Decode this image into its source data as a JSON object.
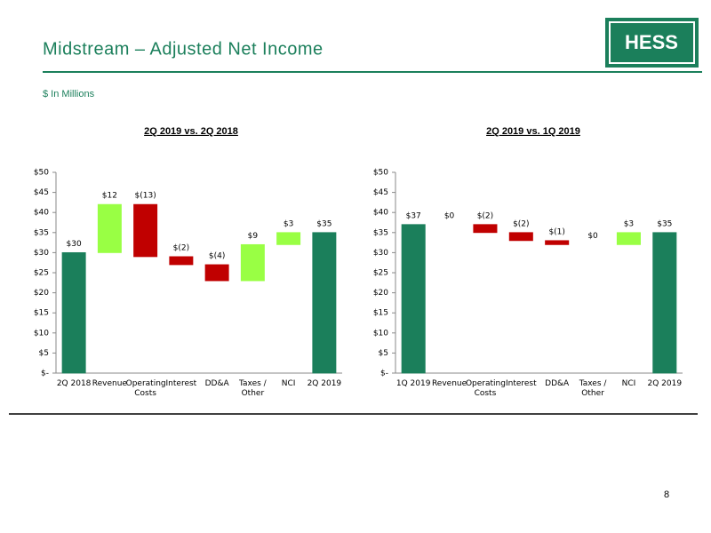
{
  "header": {
    "title": "Midstream – Adjusted Net Income",
    "subtitle": "$ In Millions",
    "logo": "HESS"
  },
  "page_number": "8",
  "chart_data": [
    {
      "type": "waterfall",
      "title": "2Q 2019 vs. 2Q 2018",
      "categories": [
        "2Q 2018",
        "Revenue",
        "Operating Costs",
        "Interest",
        "DD&A",
        "Taxes / Other",
        "NCI",
        "2Q 2019"
      ],
      "values": [
        30,
        12,
        -13,
        -2,
        -4,
        9,
        3,
        35
      ],
      "value_labels": [
        "$30",
        "$12",
        "$(13)",
        "$(2)",
        "$(4)",
        "$9",
        "$3",
        "$35"
      ],
      "ylim": [
        0,
        50
      ],
      "yticks": [
        {
          "value": 0,
          "label": "$-"
        },
        {
          "value": 5,
          "label": "$5"
        },
        {
          "value": 10,
          "label": "$10"
        },
        {
          "value": 15,
          "label": "$15"
        },
        {
          "value": 20,
          "label": "$20"
        },
        {
          "value": 25,
          "label": "$25"
        },
        {
          "value": 30,
          "label": "$30"
        },
        {
          "value": 35,
          "label": "$35"
        },
        {
          "value": 40,
          "label": "$40"
        },
        {
          "value": 45,
          "label": "$45"
        },
        {
          "value": 50,
          "label": "$50"
        }
      ],
      "colors": {
        "total": "#1b7f5b",
        "increase": "#99ff44",
        "decrease": "#c00000"
      }
    },
    {
      "type": "waterfall",
      "title": "2Q 2019 vs. 1Q 2019",
      "categories": [
        "1Q 2019",
        "Revenue",
        "Operating Costs",
        "Interest",
        "DD&A",
        "Taxes / Other",
        "NCI",
        "2Q 2019"
      ],
      "values": [
        37,
        0,
        -2,
        -2,
        -1,
        0,
        3,
        35
      ],
      "value_labels": [
        "$37",
        "$0",
        "$(2)",
        "$(2)",
        "$(1)",
        "$0",
        "$3",
        "$35"
      ],
      "ylim": [
        0,
        50
      ],
      "yticks": [
        {
          "value": 0,
          "label": "$-"
        },
        {
          "value": 5,
          "label": "$5"
        },
        {
          "value": 10,
          "label": "$10"
        },
        {
          "value": 15,
          "label": "$15"
        },
        {
          "value": 20,
          "label": "$20"
        },
        {
          "value": 25,
          "label": "$25"
        },
        {
          "value": 30,
          "label": "$30"
        },
        {
          "value": 35,
          "label": "$35"
        },
        {
          "value": 40,
          "label": "$40"
        },
        {
          "value": 45,
          "label": "$45"
        },
        {
          "value": 50,
          "label": "$50"
        }
      ],
      "colors": {
        "total": "#1b7f5b",
        "increase": "#99ff44",
        "decrease": "#c00000"
      }
    }
  ]
}
